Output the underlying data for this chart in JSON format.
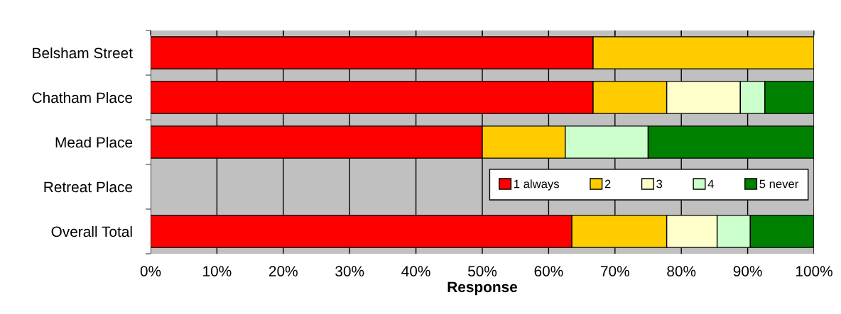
{
  "chart_data": {
    "type": "bar",
    "orientation": "horizontal",
    "stacked": true,
    "xlabel": "Response",
    "categories": [
      "Belsham Street",
      "Chatham Place",
      "Mead Place",
      "Retreat Place",
      "Overall Total"
    ],
    "series": [
      {
        "name": "1 always",
        "color": "#ff0000",
        "values": [
          66.7,
          66.7,
          50,
          null,
          63.5
        ]
      },
      {
        "name": "2",
        "color": "#ffcc00",
        "values": [
          33.3,
          11.1,
          12.5,
          null,
          14.3
        ]
      },
      {
        "name": "3",
        "color": "#ffffcc",
        "values": [
          0,
          11.1,
          0,
          null,
          7.6
        ]
      },
      {
        "name": "4",
        "color": "#ccffcc",
        "values": [
          0,
          3.7,
          12.5,
          null,
          5.0
        ]
      },
      {
        "name": "5 never",
        "color": "#008000",
        "values": [
          0,
          7.4,
          25,
          null,
          9.6
        ]
      }
    ],
    "xlim": [
      0,
      100
    ],
    "xticks": [
      {
        "value": 0,
        "label": "0%"
      },
      {
        "value": 10,
        "label": "10%"
      },
      {
        "value": 20,
        "label": "20%"
      },
      {
        "value": 30,
        "label": "30%"
      },
      {
        "value": 40,
        "label": "40%"
      },
      {
        "value": 50,
        "label": "50%"
      },
      {
        "value": 60,
        "label": "60%"
      },
      {
        "value": 70,
        "label": "70%"
      },
      {
        "value": 80,
        "label": "80%"
      },
      {
        "value": 90,
        "label": "90%"
      },
      {
        "value": 100,
        "label": "100%"
      }
    ],
    "grid": "x",
    "legend": "right"
  }
}
